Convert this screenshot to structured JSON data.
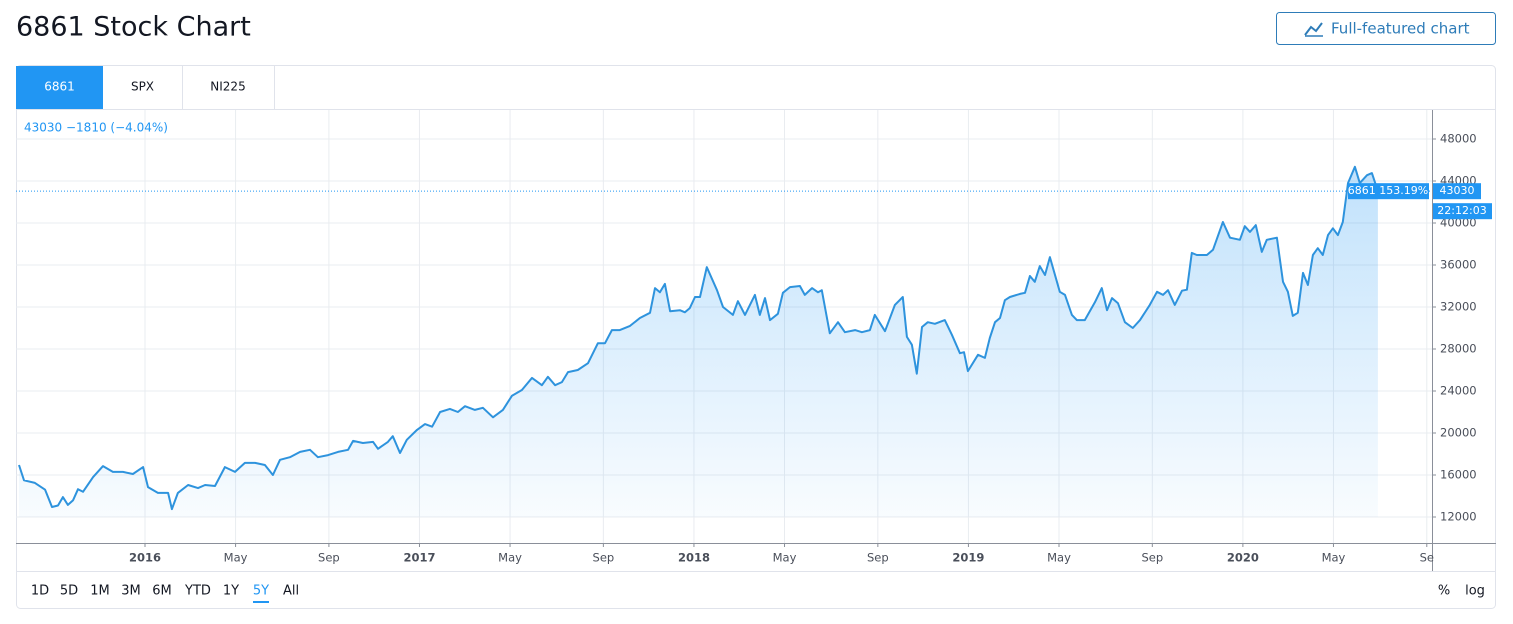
{
  "header": {
    "title": "6861 Stock Chart",
    "button": "Full-featured chart"
  },
  "tabs": {
    "items": [
      "6861",
      "SPX",
      "NI225"
    ],
    "active_index": 0
  },
  "toolbar": {
    "ranges": [
      "1D",
      "5D",
      "1M",
      "3M",
      "6M",
      "YTD",
      "1Y",
      "5Y",
      "All"
    ],
    "active_index": 7,
    "scales": [
      "%",
      "log"
    ]
  },
  "chart_data": {
    "type": "area-line",
    "legend_text": "43030 −1810 (−4.04%)",
    "series_tag": "6861 153.19%",
    "countdown": "22:12:03",
    "last_price": 43030,
    "color": "#2e93dd",
    "grid": true,
    "xlim": [
      2015.53,
      2020.689
    ],
    "xticks": [
      {
        "value": 2016,
        "label": "2016"
      },
      {
        "value": 2016.33,
        "label": "May"
      },
      {
        "value": 2016.67,
        "label": "Sep"
      },
      {
        "value": 2017,
        "label": "2017"
      },
      {
        "value": 2017.33,
        "label": "May"
      },
      {
        "value": 2017.67,
        "label": "Sep"
      },
      {
        "value": 2018,
        "label": "2018"
      },
      {
        "value": 2018.33,
        "label": "May"
      },
      {
        "value": 2018.67,
        "label": "Sep"
      },
      {
        "value": 2019,
        "label": "2019"
      },
      {
        "value": 2019.33,
        "label": "May"
      },
      {
        "value": 2019.67,
        "label": "Sep"
      },
      {
        "value": 2020,
        "label": "2020"
      },
      {
        "value": 2020.33,
        "label": "May"
      },
      {
        "value": 2020.67,
        "label": "Se"
      }
    ],
    "ylim": [
      9524,
      50762
    ],
    "yticks": [
      12000,
      16000,
      20000,
      24000,
      28000,
      32000,
      36000,
      40000,
      44000,
      48000
    ],
    "x": [
      2015.541,
      2015.559,
      2015.599,
      2015.636,
      2015.661,
      2015.683,
      2015.701,
      2015.719,
      2015.738,
      2015.756,
      2015.774,
      2015.811,
      2015.847,
      2015.883,
      2015.92,
      2015.956,
      2015.993,
      2016.011,
      2016.047,
      2016.084,
      2016.098,
      2016.12,
      2016.157,
      2016.193,
      2016.219,
      2016.255,
      2016.291,
      2016.328,
      2016.364,
      2016.401,
      2016.437,
      2016.466,
      2016.492,
      2016.528,
      2016.565,
      2016.601,
      2016.63,
      2016.667,
      2016.703,
      2016.74,
      2016.758,
      2016.794,
      2016.831,
      2016.849,
      2016.885,
      2016.903,
      2016.929,
      2016.954,
      2016.991,
      2017.02,
      2017.046,
      2017.075,
      2017.111,
      2017.14,
      2017.166,
      2017.202,
      2017.231,
      2017.268,
      2017.304,
      2017.337,
      2017.373,
      2017.41,
      2017.446,
      2017.468,
      2017.494,
      2017.519,
      2017.541,
      2017.577,
      2017.614,
      2017.65,
      2017.676,
      2017.701,
      2017.73,
      2017.767,
      2017.803,
      2017.84,
      2017.858,
      2017.876,
      2017.894,
      2017.913,
      2017.949,
      2017.967,
      2017.985,
      2018.004,
      2018.022,
      2018.047,
      2018.084,
      2018.106,
      2018.142,
      2018.16,
      2018.186,
      2018.222,
      2018.24,
      2018.259,
      2018.277,
      2018.306,
      2018.324,
      2018.35,
      2018.386,
      2018.404,
      2018.43,
      2018.452,
      2018.466,
      2018.495,
      2018.525,
      2018.55,
      2018.587,
      2018.612,
      2018.641,
      2018.659,
      2018.696,
      2018.732,
      2018.761,
      2018.776,
      2018.794,
      2018.812,
      2018.831,
      2018.852,
      2018.878,
      2018.914,
      2018.94,
      2018.969,
      2018.984,
      2018.998,
      2019.035,
      2019.06,
      2019.078,
      2019.097,
      2019.115,
      2019.133,
      2019.151,
      2019.188,
      2019.206,
      2019.224,
      2019.242,
      2019.26,
      2019.279,
      2019.297,
      2019.333,
      2019.352,
      2019.377,
      2019.395,
      2019.424,
      2019.461,
      2019.486,
      2019.505,
      2019.523,
      2019.545,
      2019.57,
      2019.599,
      2019.625,
      2019.661,
      2019.687,
      2019.709,
      2019.727,
      2019.752,
      2019.778,
      2019.796,
      2019.814,
      2019.832,
      2019.869,
      2019.891,
      2019.927,
      2019.953,
      2019.989,
      2020.007,
      2020.026,
      2020.047,
      2020.069,
      2020.087,
      2020.124,
      2020.146,
      2020.164,
      2020.182,
      2020.2,
      2020.219,
      2020.237,
      2020.255,
      2020.273,
      2020.291,
      2020.31,
      2020.328,
      2020.346,
      2020.364,
      2020.383,
      2020.408,
      2020.426,
      2020.452,
      2020.47,
      2020.492
    ],
    "values": [
      16950,
      15500,
      15250,
      14600,
      12950,
      13100,
      13900,
      13150,
      13600,
      14650,
      14400,
      15800,
      16850,
      16300,
      16300,
      16100,
      16750,
      14850,
      14300,
      14300,
      12750,
      14300,
      15050,
      14750,
      15050,
      14950,
      16750,
      16300,
      17150,
      17150,
      16950,
      16000,
      17450,
      17700,
      18200,
      18400,
      17700,
      17900,
      18200,
      18400,
      19250,
      19050,
      19150,
      18500,
      19150,
      19700,
      18100,
      19350,
      20300,
      20850,
      20600,
      22000,
      22300,
      22000,
      22550,
      22200,
      22400,
      21500,
      22200,
      23550,
      24100,
      25250,
      24550,
      25350,
      24550,
      24850,
      25800,
      26000,
      26650,
      28550,
      28550,
      29800,
      29800,
      30200,
      30950,
      31450,
      33800,
      33400,
      34200,
      31600,
      31700,
      31500,
      31900,
      32950,
      32950,
      35800,
      33600,
      32000,
      31250,
      32550,
      31250,
      33150,
      31250,
      32850,
      30750,
      31350,
      33350,
      33900,
      34000,
      33150,
      33800,
      33400,
      33600,
      29500,
      30550,
      29600,
      29800,
      29600,
      29800,
      31250,
      29700,
      32200,
      32950,
      29150,
      28400,
      25650,
      30100,
      30550,
      30400,
      30750,
      29350,
      27600,
      27700,
      25900,
      27450,
      27150,
      29050,
      30550,
      30950,
      32650,
      32950,
      33250,
      33350,
      34950,
      34400,
      35900,
      35050,
      36750,
      33450,
      33150,
      31250,
      30750,
      30750,
      32450,
      33800,
      31700,
      32850,
      32350,
      30550,
      30000,
      30750,
      32200,
      33450,
      33150,
      33600,
      32200,
      33550,
      33650,
      37150,
      36950,
      36950,
      37450,
      40100,
      38600,
      38400,
      39700,
      39150,
      39800,
      37250,
      38400,
      38600,
      34400,
      33450,
      31150,
      31450,
      35250,
      34100,
      36950,
      37600,
      36950,
      38850,
      39500,
      38850,
      40100,
      43800,
      45350,
      43800,
      44550,
      44750,
      43030
    ]
  }
}
